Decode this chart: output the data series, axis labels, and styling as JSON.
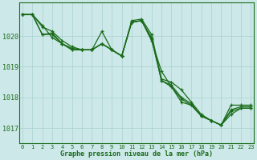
{
  "title": "Graphe pression niveau de la mer (hPa)",
  "background_color": "#cce8e8",
  "grid_color": "#aad0d0",
  "line_color": "#1a6b1a",
  "marker_color": "#1a6b1a",
  "xlim": [
    -0.3,
    23.3
  ],
  "ylim": [
    1016.5,
    1021.1
  ],
  "xticks": [
    0,
    1,
    2,
    3,
    4,
    5,
    6,
    7,
    8,
    9,
    10,
    11,
    12,
    13,
    14,
    15,
    16,
    17,
    18,
    19,
    20,
    21,
    22,
    23
  ],
  "yticks": [
    1017,
    1018,
    1019,
    1020
  ],
  "series": [
    [
      1020.7,
      1020.7,
      1020.3,
      1020.15,
      1019.85,
      1019.65,
      1019.55,
      1019.55,
      1020.15,
      1019.55,
      1019.35,
      1020.5,
      1020.55,
      1020.05,
      1018.6,
      1018.5,
      1018.25,
      1017.85,
      1017.45,
      1017.25,
      1017.1,
      1017.75,
      1017.75,
      1017.75
    ],
    [
      1020.7,
      1020.7,
      1020.05,
      1020.1,
      1019.75,
      1019.6,
      1019.55,
      1019.55,
      1019.75,
      1019.55,
      1019.35,
      1020.45,
      1020.5,
      1019.95,
      1018.55,
      1018.4,
      1018.0,
      1017.8,
      1017.4,
      1017.25,
      1017.1,
      1017.6,
      1017.7,
      1017.7
    ],
    [
      1020.7,
      1020.7,
      1020.05,
      1020.05,
      1019.75,
      1019.55,
      1019.55,
      1019.55,
      1019.75,
      1019.55,
      1019.35,
      1020.45,
      1020.5,
      1019.9,
      1018.55,
      1018.35,
      1017.95,
      1017.75,
      1017.4,
      1017.25,
      1017.1,
      1017.55,
      1017.65,
      1017.65
    ]
  ],
  "series2": [
    [
      1020.7,
      1020.7,
      1020.35,
      1019.95,
      1019.75,
      1019.55,
      1019.55,
      1019.55,
      1019.75,
      1019.55,
      1019.35,
      1020.45,
      1020.5,
      1019.85,
      1018.85,
      1018.35,
      1017.85,
      1017.75,
      1017.4,
      1017.25,
      1017.1,
      1017.45,
      1017.65,
      1017.65
    ]
  ]
}
